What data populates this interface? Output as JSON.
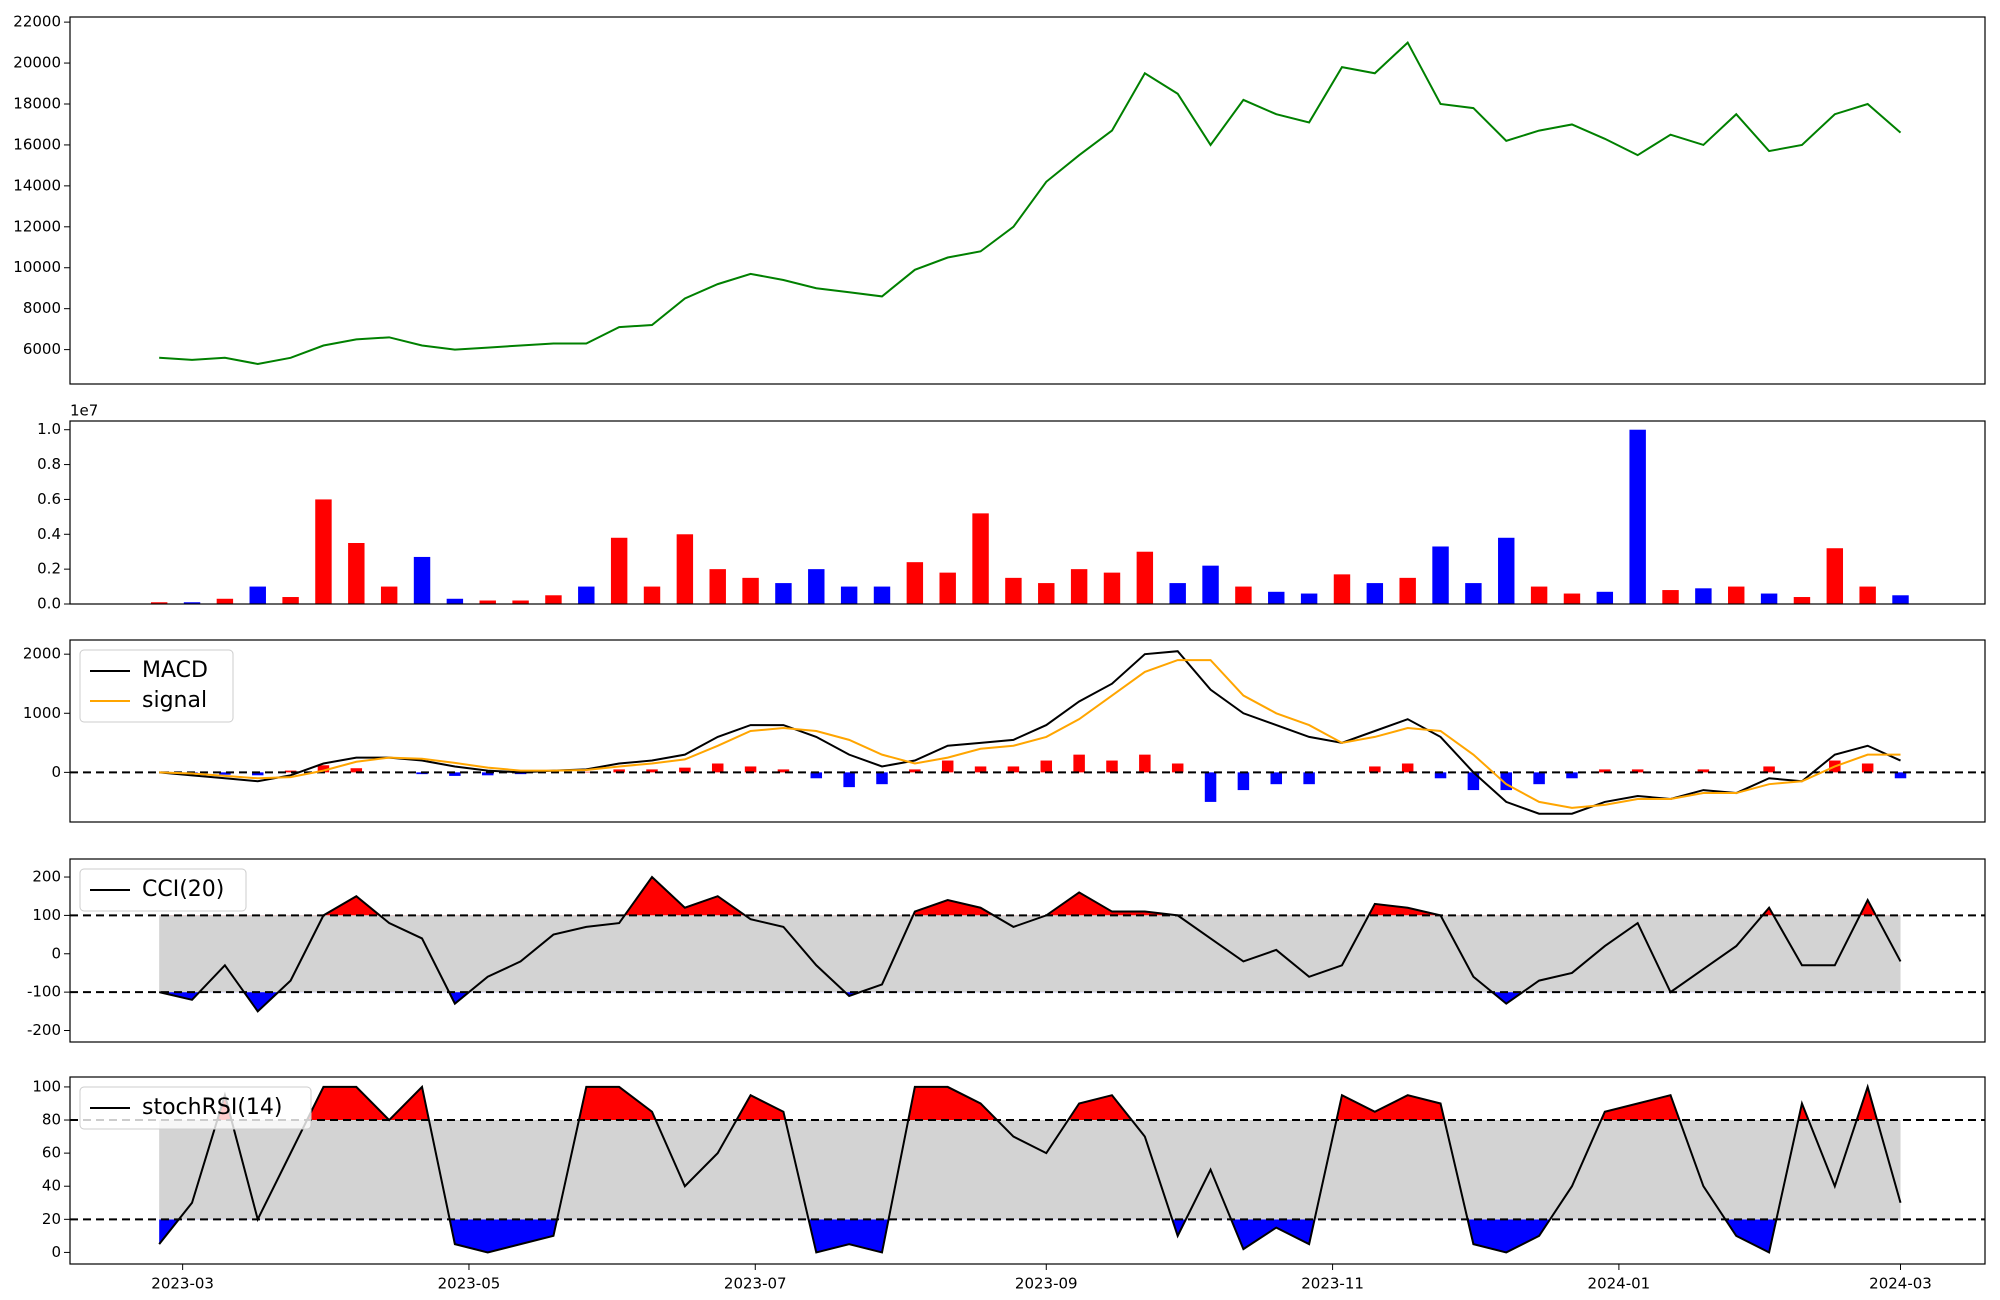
{
  "chart_data": [
    {
      "type": "line",
      "x": [
        55,
        62,
        69,
        76,
        83,
        90,
        97,
        104,
        111,
        118,
        125,
        132,
        139,
        146,
        153,
        160,
        167,
        174,
        181,
        188,
        195,
        202,
        209,
        216,
        223,
        230,
        237,
        244,
        251,
        258,
        265,
        272,
        279,
        286,
        293,
        300,
        307,
        314,
        321,
        328,
        335,
        342,
        349,
        356,
        363,
        370,
        377,
        384,
        391,
        398,
        405,
        412,
        419,
        426
      ],
      "xlim": [
        36,
        444
      ],
      "ylim": [
        4320,
        22250
      ],
      "yticks": [
        6000,
        8000,
        10000,
        12000,
        14000,
        16000,
        18000,
        20000,
        22000
      ],
      "series": [
        {
          "color": "green",
          "values": [
            5600,
            5500,
            5600,
            5300,
            5600,
            6200,
            6500,
            6600,
            6200,
            6000,
            6100,
            6200,
            6300,
            6300,
            7100,
            7200,
            8500,
            9200,
            9700,
            9400,
            9000,
            8800,
            8600,
            9900,
            10500,
            10800,
            12000,
            14200,
            15500,
            16700,
            19500,
            18500,
            16000,
            18200,
            17500,
            17100,
            19800,
            19500,
            21000,
            18000,
            17800,
            16200,
            16700,
            17000,
            16300,
            15500,
            16500,
            16000,
            17500,
            15700,
            16000,
            17500,
            18000,
            16600
          ]
        }
      ]
    },
    {
      "type": "bar",
      "x": [
        55,
        62,
        69,
        76,
        83,
        90,
        97,
        104,
        111,
        118,
        125,
        132,
        139,
        146,
        153,
        160,
        167,
        174,
        181,
        188,
        195,
        202,
        209,
        216,
        223,
        230,
        237,
        244,
        251,
        258,
        265,
        272,
        279,
        286,
        293,
        300,
        307,
        314,
        321,
        328,
        335,
        342,
        349,
        356,
        363,
        370,
        377,
        384,
        391,
        398,
        405,
        412,
        419,
        426
      ],
      "xlim": [
        36,
        444
      ],
      "ylim": [
        0,
        1.05
      ],
      "offset_label": "1e7",
      "yticks": [
        {
          "value": 0,
          "label": "0.0"
        },
        {
          "value": 0.2,
          "label": "0.2"
        },
        {
          "value": 0.4,
          "label": "0.4"
        },
        {
          "value": 0.6,
          "label": "0.6"
        },
        {
          "value": 0.8,
          "label": "0.8"
        },
        {
          "value": 1,
          "label": "1.0"
        }
      ],
      "values": [
        0.01,
        0.01,
        0.03,
        0.1,
        0.04,
        0.6,
        0.35,
        0.1,
        0.27,
        0.03,
        0.02,
        0.02,
        0.05,
        0.1,
        0.38,
        0.1,
        0.4,
        0.2,
        0.15,
        0.12,
        0.2,
        0.1,
        0.1,
        0.24,
        0.18,
        0.52,
        0.15,
        0.12,
        0.2,
        0.18,
        0.3,
        0.12,
        0.22,
        0.1,
        0.07,
        0.06,
        0.17,
        0.12,
        0.15,
        0.33,
        0.12,
        0.38,
        0.1,
        0.06,
        0.07,
        1.0,
        0.08,
        0.09,
        0.1,
        0.06,
        0.04,
        0.32,
        0.1,
        0.05
      ],
      "colors": [
        "red",
        "blue",
        "red",
        "blue",
        "red",
        "red",
        "red",
        "red",
        "blue",
        "blue",
        "red",
        "red",
        "red",
        "blue",
        "red",
        "red",
        "red",
        "red",
        "red",
        "blue",
        "blue",
        "blue",
        "blue",
        "red",
        "red",
        "red",
        "red",
        "red",
        "red",
        "red",
        "red",
        "blue",
        "blue",
        "red",
        "blue",
        "blue",
        "red",
        "blue",
        "red",
        "blue",
        "blue",
        "blue",
        "red",
        "red",
        "blue",
        "blue",
        "red",
        "blue",
        "red",
        "blue",
        "red",
        "red",
        "red",
        "blue"
      ]
    },
    {
      "type": "line",
      "x": [
        55,
        62,
        69,
        76,
        83,
        90,
        97,
        104,
        111,
        118,
        125,
        132,
        139,
        146,
        153,
        160,
        167,
        174,
        181,
        188,
        195,
        202,
        209,
        216,
        223,
        230,
        237,
        244,
        251,
        258,
        265,
        272,
        279,
        286,
        293,
        300,
        307,
        314,
        321,
        328,
        335,
        342,
        349,
        356,
        363,
        370,
        377,
        384,
        391,
        398,
        405,
        412,
        419,
        426
      ],
      "xlim": [
        36,
        444
      ],
      "ylim": [
        -840,
        2240
      ],
      "yticks": [
        0,
        1000,
        2000
      ],
      "hlines": [
        0
      ],
      "legend": "upper left",
      "series": [
        {
          "name": "MACD",
          "color": "black",
          "values": [
            0,
            -50,
            -100,
            -150,
            -50,
            150,
            250,
            250,
            200,
            100,
            30,
            0,
            30,
            50,
            150,
            200,
            300,
            600,
            800,
            800,
            600,
            300,
            100,
            200,
            450,
            500,
            550,
            800,
            1200,
            1500,
            2000,
            2050,
            1400,
            1000,
            800,
            600,
            500,
            700,
            900,
            600,
            0,
            -500,
            -700,
            -700,
            -500,
            -400,
            -450,
            -300,
            -350,
            -100,
            -150,
            300,
            450,
            200
          ]
        },
        {
          "name": "signal",
          "color": "orange",
          "values": [
            0,
            -20,
            -60,
            -100,
            -80,
            30,
            180,
            250,
            230,
            160,
            80,
            30,
            30,
            40,
            100,
            150,
            220,
            450,
            700,
            750,
            700,
            550,
            300,
            150,
            250,
            400,
            450,
            600,
            900,
            1300,
            1700,
            1900,
            1900,
            1300,
            1000,
            800,
            500,
            600,
            750,
            700,
            300,
            -200,
            -500,
            -600,
            -550,
            -450,
            -450,
            -350,
            -350,
            -200,
            -150,
            100,
            300,
            300
          ]
        }
      ],
      "histogram": {
        "up_color": "red",
        "down_color": "blue",
        "values": [
          0,
          -30,
          -40,
          -50,
          30,
          120,
          70,
          0,
          -30,
          -60,
          -50,
          -30,
          0,
          10,
          50,
          50,
          80,
          150,
          100,
          50,
          -100,
          -250,
          -200,
          50,
          200,
          100,
          100,
          200,
          300,
          200,
          300,
          150,
          -500,
          -300,
          -200,
          -200,
          0,
          100,
          150,
          -100,
          -300,
          -300,
          -200,
          -100,
          50,
          50,
          0,
          50,
          0,
          100,
          0,
          200,
          150,
          -100
        ]
      }
    },
    {
      "type": "line",
      "x": [
        55,
        62,
        69,
        76,
        83,
        90,
        97,
        104,
        111,
        118,
        125,
        132,
        139,
        146,
        153,
        160,
        167,
        174,
        181,
        188,
        195,
        202,
        209,
        216,
        223,
        230,
        237,
        244,
        251,
        258,
        265,
        272,
        279,
        286,
        293,
        300,
        307,
        314,
        321,
        328,
        335,
        342,
        349,
        356,
        363,
        370,
        377,
        384,
        391,
        398,
        405,
        412,
        419,
        426
      ],
      "xlim": [
        36,
        444
      ],
      "ylim": [
        -230,
        247
      ],
      "yticks": [
        -200,
        -100,
        0,
        100,
        200
      ],
      "hlines": [
        -100,
        100
      ],
      "legend": "upper left",
      "band": {
        "color": "lightgray",
        "above_color": "red",
        "below_color": "blue"
      },
      "series": [
        {
          "name": "CCI(20)",
          "color": "black",
          "values": [
            -100,
            -120,
            -30,
            -150,
            -70,
            100,
            150,
            80,
            40,
            -130,
            -60,
            -20,
            50,
            70,
            80,
            200,
            120,
            150,
            90,
            70,
            -30,
            -110,
            -80,
            110,
            140,
            120,
            70,
            100,
            160,
            110,
            110,
            100,
            40,
            -20,
            10,
            -60,
            -30,
            130,
            120,
            100,
            -60,
            -130,
            -70,
            -50,
            20,
            80,
            -100,
            -40,
            20,
            120,
            -30,
            -30,
            140,
            -20
          ]
        }
      ]
    },
    {
      "type": "line",
      "x": [
        55,
        62,
        69,
        76,
        83,
        90,
        97,
        104,
        111,
        118,
        125,
        132,
        139,
        146,
        153,
        160,
        167,
        174,
        181,
        188,
        195,
        202,
        209,
        216,
        223,
        230,
        237,
        244,
        251,
        258,
        265,
        272,
        279,
        286,
        293,
        300,
        307,
        314,
        321,
        328,
        335,
        342,
        349,
        356,
        363,
        370,
        377,
        384,
        391,
        398,
        405,
        412,
        419,
        426
      ],
      "xlim": [
        36,
        444
      ],
      "ylim": [
        -7,
        106
      ],
      "yticks": [
        0,
        20,
        40,
        60,
        80,
        100
      ],
      "hlines": [
        20,
        80
      ],
      "legend": "upper left",
      "band": {
        "color": "lightgray",
        "above_color": "red",
        "below_color": "blue"
      },
      "xticks": [
        {
          "value": 60,
          "label": "2023-03"
        },
        {
          "value": 121,
          "label": "2023-05"
        },
        {
          "value": 182,
          "label": "2023-07"
        },
        {
          "value": 244,
          "label": "2023-09"
        },
        {
          "value": 305,
          "label": "2023-11"
        },
        {
          "value": 366,
          "label": "2024-01"
        },
        {
          "value": 426,
          "label": "2024-03"
        }
      ],
      "series": [
        {
          "name": "stochRSI(14)",
          "color": "black",
          "values": [
            5,
            30,
            95,
            20,
            60,
            100,
            100,
            80,
            100,
            5,
            0,
            5,
            10,
            100,
            100,
            85,
            40,
            60,
            95,
            85,
            0,
            5,
            0,
            100,
            100,
            90,
            70,
            60,
            90,
            95,
            70,
            10,
            50,
            2,
            15,
            5,
            95,
            85,
            95,
            90,
            5,
            0,
            10,
            40,
            85,
            90,
            95,
            40,
            10,
            0,
            90,
            40,
            100,
            30
          ]
        }
      ]
    }
  ]
}
